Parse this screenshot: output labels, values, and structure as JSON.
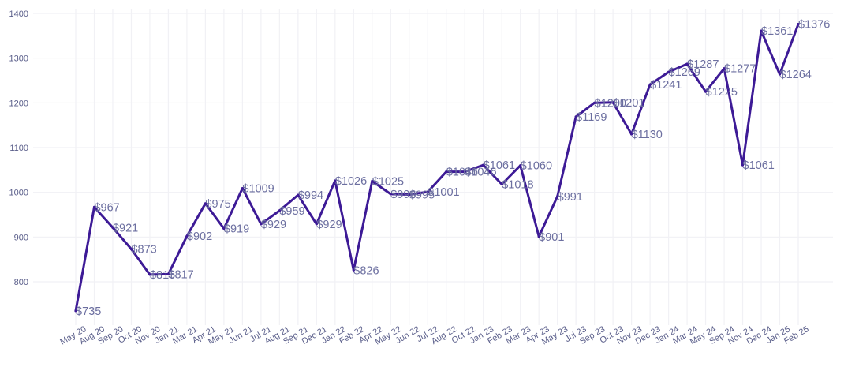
{
  "chart_data": {
    "type": "line",
    "title": "",
    "xlabel": "",
    "ylabel": "",
    "ylim": [
      710,
      1410
    ],
    "yticks": [
      800,
      900,
      1000,
      1100,
      1200,
      1300,
      1400
    ],
    "ytick_labels": [
      "800",
      "900",
      "1000",
      "1100",
      "1200",
      "1300",
      "1400"
    ],
    "grid": true,
    "legend": "none",
    "line_color": "#3d1a96",
    "grid_color": "#f1f1f5",
    "label_color": "#6c6fa0",
    "tick_color": "#5a5e8a",
    "data_label_prefix": "$",
    "categories": [
      "May 20",
      "Aug 20",
      "Sep 20",
      "Oct 20",
      "Nov 20",
      "Jan 21",
      "Mar 21",
      "Apr 21",
      "May 21",
      "Jun 21",
      "Jul 21",
      "Aug 21",
      "Sep 21",
      "Dec 21",
      "Jan 22",
      "Feb 22",
      "Apr 22",
      "May 22",
      "Jun 22",
      "Jul 22",
      "Aug 22",
      "Oct 22",
      "Jan 23",
      "Feb 23",
      "Mar 23",
      "Apr 23",
      "May 23",
      "Jul 23",
      "Sep 23",
      "Oct 23",
      "Nov 23",
      "Dec 23",
      "Jan 24",
      "Mar 24",
      "May 24",
      "Sep 24",
      "Nov 24",
      "Dec 24",
      "Jan 25",
      "Feb 25"
    ],
    "series": [
      {
        "values": [
          735,
          967,
          921,
          873,
          816,
          817,
          902,
          975,
          919,
          1009,
          929,
          959,
          994,
          929,
          1026,
          826,
          1025,
          996,
          995,
          1001,
          1046,
          1046,
          1061,
          1018,
          1060,
          901,
          991,
          1169,
          1200,
          1201,
          1130,
          1241,
          1269,
          1287,
          1225,
          1277,
          1061,
          1361,
          1264,
          1376
        ]
      }
    ]
  }
}
